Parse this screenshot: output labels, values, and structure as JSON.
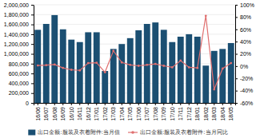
{
  "chart_data": {
    "type": "bar",
    "categories": [
      "16/06",
      "16/07",
      "16/08",
      "16/09",
      "16/10",
      "16/11",
      "16/12",
      "17/01",
      "17/02",
      "17/03",
      "17/04",
      "17/05",
      "17/06",
      "17/07",
      "17/08",
      "17/09",
      "17/10",
      "17/11",
      "17/12",
      "18/01",
      "18/02",
      "18/03",
      "18/04",
      "18/05"
    ],
    "series": [
      {
        "name": "出口金额:服装及衣着附件:当月值",
        "type": "bar",
        "color": "#1b4f72",
        "values": [
          1490000,
          1610000,
          1790000,
          1500000,
          1290000,
          1240000,
          1440000,
          1440000,
          650000,
          1100000,
          1200000,
          1320000,
          1480000,
          1610000,
          1640000,
          1490000,
          1240000,
          1350000,
          1400000,
          1350000,
          760000,
          1060000,
          1100000,
          1220000
        ]
      },
      {
        "name": "出口金额:服装及衣着附件:当月同比",
        "type": "line",
        "axis": "y2",
        "color": "#e07070",
        "marker": "circle",
        "values": [
          1.0,
          1.5,
          2.5,
          -3.0,
          -6.0,
          -7.0,
          5.0,
          5.5,
          -10.0,
          25.0,
          6.0,
          2.0,
          0.5,
          2.0,
          3.5,
          0.5,
          -2.0,
          9.0,
          -2.0,
          -3.0,
          82.0,
          -38.0,
          -4.0,
          5.0
        ]
      }
    ],
    "ylim": [
      0,
      2000000
    ],
    "yticks": [
      0,
      {
        "value": 200000,
        "label": "200,000"
      },
      {
        "value": 400000,
        "label": "400,000"
      },
      {
        "value": 600000,
        "label": "600,000"
      },
      {
        "value": 800000,
        "label": "800,000"
      },
      {
        "value": 1000000,
        "label": "1,000,000"
      },
      {
        "value": 1200000,
        "label": "1,200,000"
      },
      {
        "value": 1400000,
        "label": "1,400,000"
      },
      {
        "value": 1600000,
        "label": "1,600,000"
      },
      {
        "value": 1800000,
        "label": "1,800,000"
      },
      {
        "value": 2000000,
        "label": "2,000,000"
      }
    ],
    "y2lim": [
      -60,
      100
    ],
    "y2ticks": [
      {
        "value": -60,
        "label": "-60%"
      },
      {
        "value": -40,
        "label": "-40%"
      },
      {
        "value": -20,
        "label": "-20%"
      },
      {
        "value": 0,
        "label": "0%"
      },
      {
        "value": 20,
        "label": "20%"
      },
      {
        "value": 40,
        "label": "40%"
      },
      {
        "value": 60,
        "label": "60%"
      },
      {
        "value": 80,
        "label": "80%"
      },
      {
        "value": 100,
        "label": "100%"
      }
    ],
    "grid": true,
    "legend": "bottom"
  }
}
